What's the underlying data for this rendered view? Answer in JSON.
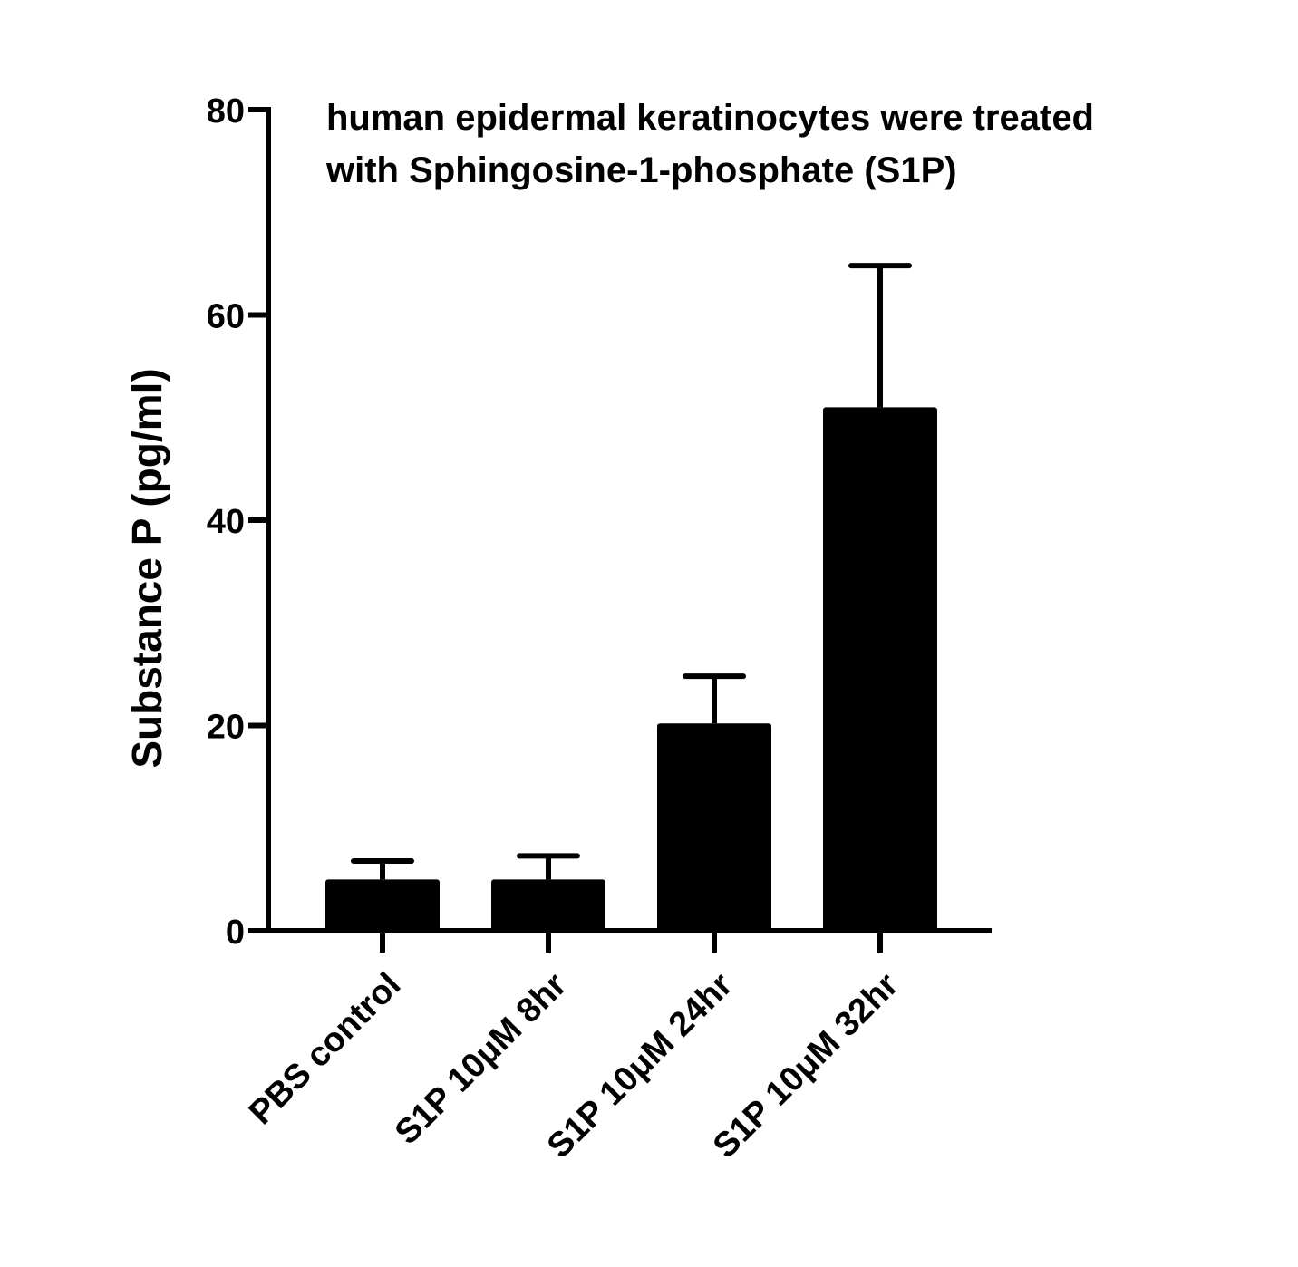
{
  "chart_data": {
    "type": "bar",
    "title_lines": [
      "human epidermal keratinocytes were treated",
      "with Sphingosine-1-phosphate (S1P)"
    ],
    "xlabel": "",
    "ylabel": "Substance P (pg/ml)",
    "ylim": [
      0,
      80
    ],
    "yticks": [
      0,
      20,
      40,
      60,
      80
    ],
    "categories": [
      "PBS control",
      "S1P 10μM 8hr",
      "S1P 10μM 24hr",
      "S1P 10μM 32hr"
    ],
    "values": [
      5,
      5,
      20.2,
      51
    ],
    "error_upper": [
      6.8,
      7.3,
      24.8,
      64.8
    ],
    "bar_color": "#000000",
    "grid": false,
    "legend": "none"
  }
}
